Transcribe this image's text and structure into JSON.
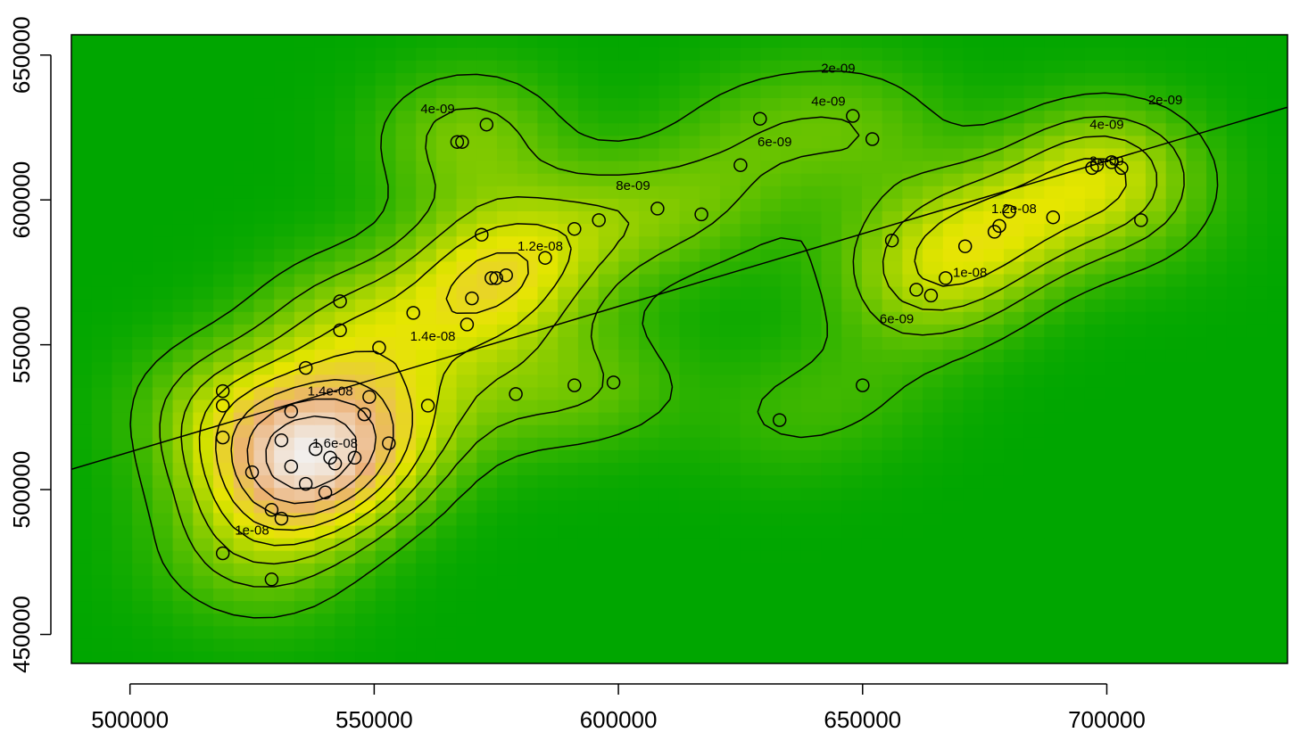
{
  "chart_data": {
    "type": "heatmap",
    "subtype": "2d-kernel-density-with-contours",
    "title": "",
    "xlabel": "",
    "ylabel": "",
    "xlim": [
      488000,
      737000
    ],
    "ylim": [
      440000,
      657000
    ],
    "x_ticks": [
      500000,
      550000,
      600000,
      650000,
      700000
    ],
    "y_ticks": [
      450000,
      500000,
      550000,
      600000,
      650000
    ],
    "x_tick_labels": [
      "500000",
      "550000",
      "600000",
      "650000",
      "700000"
    ],
    "y_tick_labels": [
      "450000",
      "500000",
      "550000",
      "600000",
      "650000"
    ],
    "grid": false,
    "legend": "none",
    "colors": {
      "low": "#00a600",
      "mid": "#e6e600",
      "high": "#f2f2f2",
      "contour": "#000000",
      "points": "#000000"
    },
    "contour_levels": [
      "2e-09",
      "4e-09",
      "6e-09",
      "8e-09",
      "1e-08",
      "1.2e-08",
      "1.4e-08",
      "1.6e-08"
    ],
    "contour_labels": [
      {
        "text": "2e-09",
        "x": 645000,
        "y": 645500
      },
      {
        "text": "4e-09",
        "x": 563000,
        "y": 631500
      },
      {
        "text": "4e-09",
        "x": 643000,
        "y": 634000
      },
      {
        "text": "6e-09",
        "x": 632000,
        "y": 620000
      },
      {
        "text": "8e-09",
        "x": 603000,
        "y": 605000
      },
      {
        "text": "1.2e-08",
        "x": 584000,
        "y": 584000
      },
      {
        "text": "1.4e-08",
        "x": 562000,
        "y": 553000
      },
      {
        "text": "1.4e-08",
        "x": 541000,
        "y": 534000
      },
      {
        "text": "1.6e-08",
        "x": 542000,
        "y": 516000
      },
      {
        "text": "1e-08",
        "x": 525000,
        "y": 486000
      },
      {
        "text": "2e-09",
        "x": 712000,
        "y": 634500
      },
      {
        "text": "4e-09",
        "x": 700000,
        "y": 626000
      },
      {
        "text": "8e-09",
        "x": 700000,
        "y": 613500
      },
      {
        "text": "1.2e-08",
        "x": 681000,
        "y": 597000
      },
      {
        "text": "1e-08",
        "x": 672000,
        "y": 575000
      },
      {
        "text": "6e-09",
        "x": 657000,
        "y": 559000
      }
    ],
    "regression_line": {
      "x": [
        488000,
        737000
      ],
      "y": [
        507000,
        632000
      ]
    },
    "points": [
      [
        567000,
        620000
      ],
      [
        568000,
        620000
      ],
      [
        573000,
        626000
      ],
      [
        629000,
        628000
      ],
      [
        648000,
        629000
      ],
      [
        652000,
        621000
      ],
      [
        625000,
        612000
      ],
      [
        617000,
        595000
      ],
      [
        608000,
        597000
      ],
      [
        596000,
        593000
      ],
      [
        591000,
        590000
      ],
      [
        585000,
        580000
      ],
      [
        572000,
        588000
      ],
      [
        577000,
        574000
      ],
      [
        575000,
        573000
      ],
      [
        574000,
        573000
      ],
      [
        570000,
        566000
      ],
      [
        569000,
        557000
      ],
      [
        558000,
        561000
      ],
      [
        551000,
        549000
      ],
      [
        543000,
        565000
      ],
      [
        543000,
        555000
      ],
      [
        536000,
        542000
      ],
      [
        519000,
        534000
      ],
      [
        519000,
        529000
      ],
      [
        519000,
        518000
      ],
      [
        533000,
        527000
      ],
      [
        549000,
        532000
      ],
      [
        548000,
        526000
      ],
      [
        531000,
        517000
      ],
      [
        538000,
        514000
      ],
      [
        546000,
        511000
      ],
      [
        541000,
        511000
      ],
      [
        542000,
        509000
      ],
      [
        533000,
        508000
      ],
      [
        536000,
        502000
      ],
      [
        540000,
        499000
      ],
      [
        525000,
        506000
      ],
      [
        529000,
        493000
      ],
      [
        531000,
        490000
      ],
      [
        519000,
        478000
      ],
      [
        529000,
        469000
      ],
      [
        553000,
        516000
      ],
      [
        561000,
        529000
      ],
      [
        579000,
        533000
      ],
      [
        591000,
        536000
      ],
      [
        599000,
        537000
      ],
      [
        633000,
        524000
      ],
      [
        650000,
        536000
      ],
      [
        656000,
        586000
      ],
      [
        661000,
        569000
      ],
      [
        664000,
        567000
      ],
      [
        667000,
        573000
      ],
      [
        671000,
        584000
      ],
      [
        677000,
        589000
      ],
      [
        678000,
        591000
      ],
      [
        680000,
        596000
      ],
      [
        689000,
        594000
      ],
      [
        697000,
        611000
      ],
      [
        698000,
        612000
      ],
      [
        701000,
        613000
      ],
      [
        703000,
        611000
      ],
      [
        707000,
        593000
      ]
    ]
  }
}
